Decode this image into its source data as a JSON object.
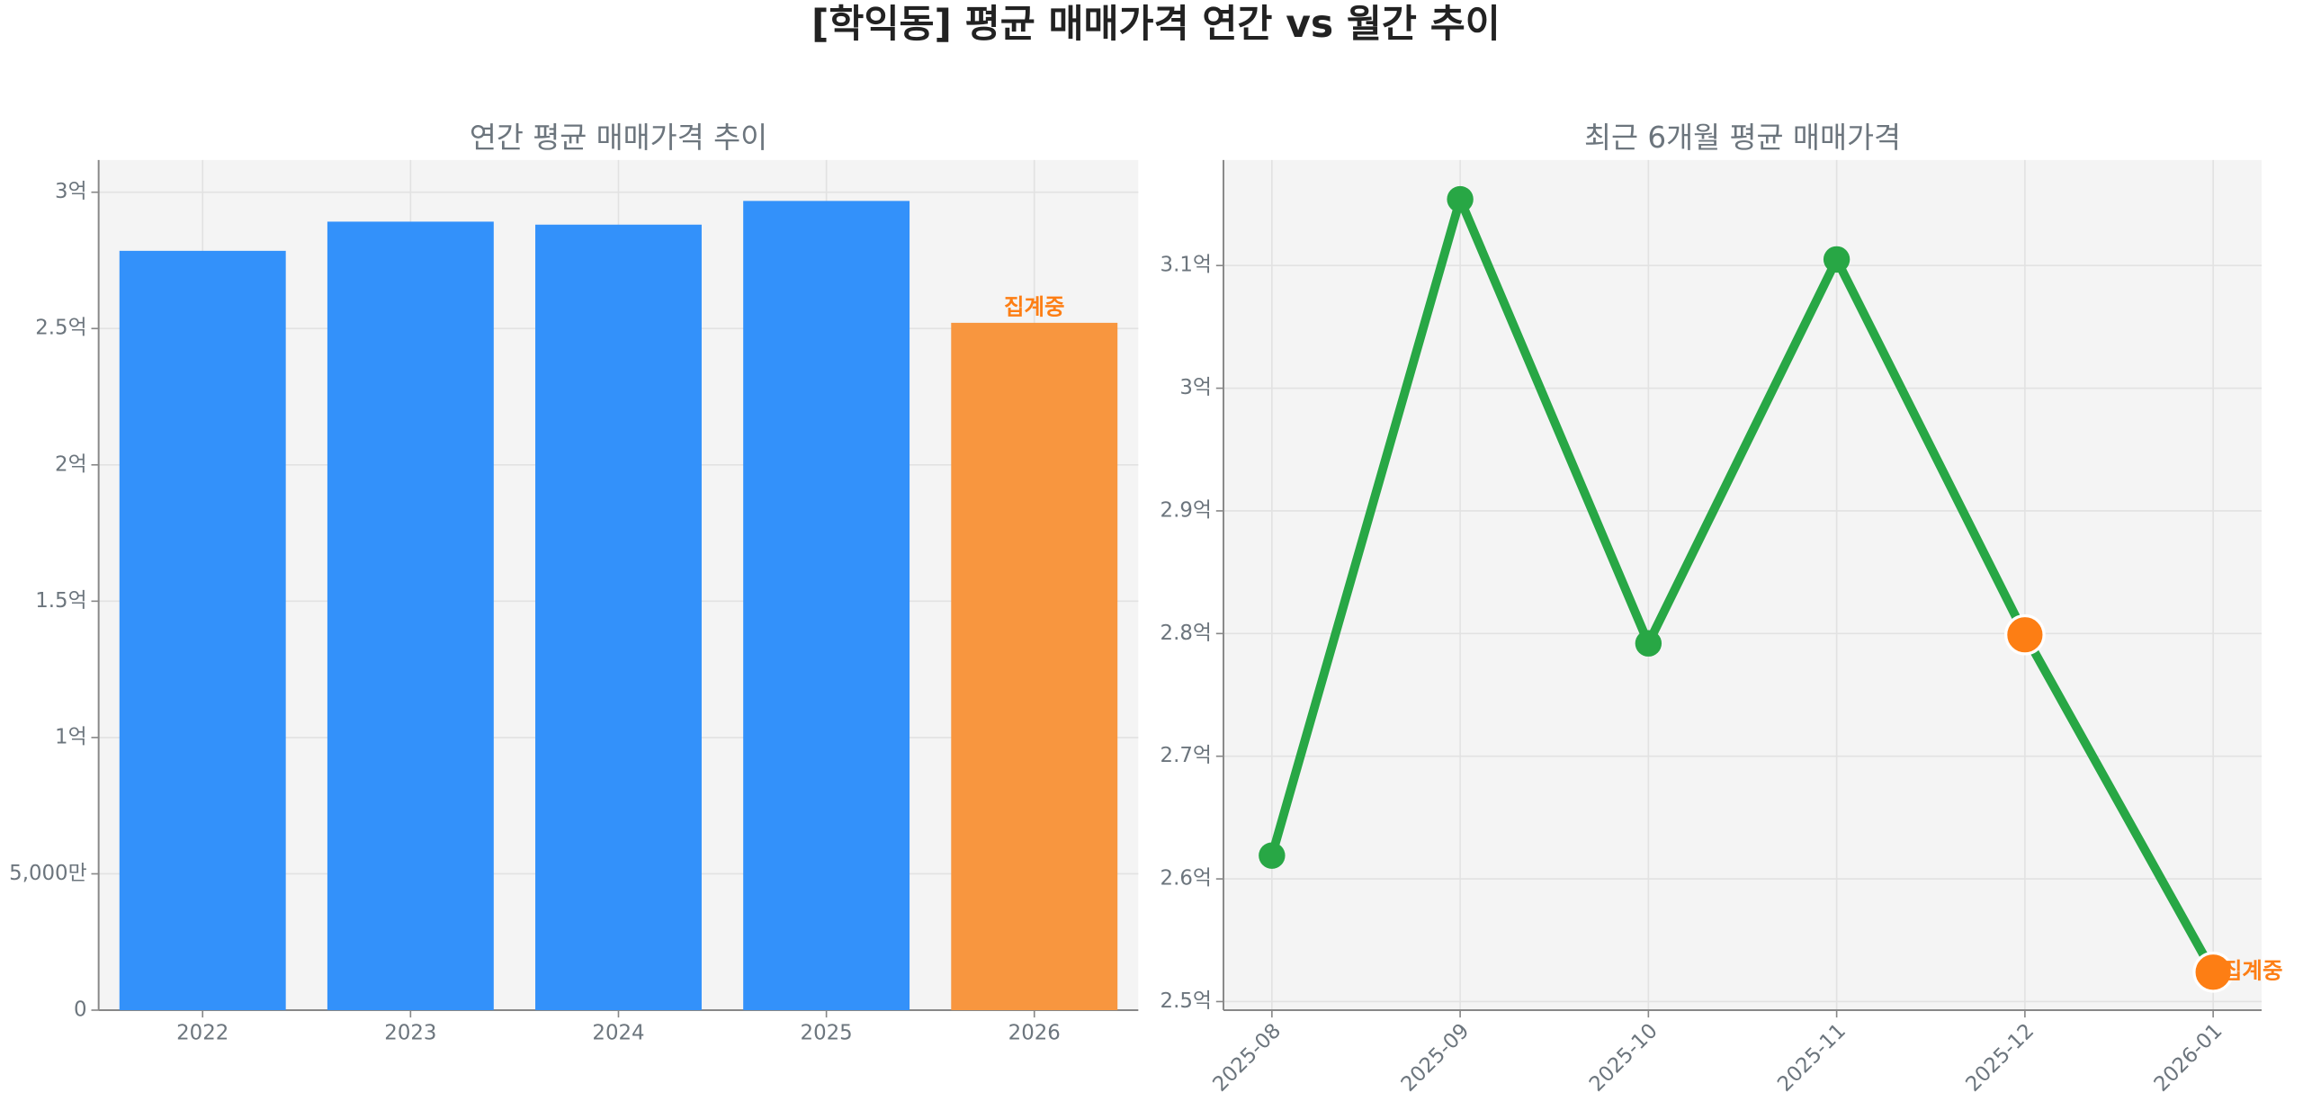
{
  "title": "[학익동] 평균 매매가격 연간 vs 월간 추이",
  "chart_data": [
    {
      "type": "bar",
      "title": "연간 평균 매매가격 추이",
      "categories": [
        "2022",
        "2023",
        "2024",
        "2025",
        "2026"
      ],
      "values": [
        278500000,
        289200000,
        288100000,
        296800000,
        252100000
      ],
      "colors": [
        "#3391fa",
        "#3391fa",
        "#3391fa",
        "#3391fa",
        "#f8963f"
      ],
      "annotations": [
        {
          "index": 4,
          "text": "집계중",
          "color": "#fd7e14"
        }
      ],
      "ylim": [
        0,
        311800000
      ],
      "yticks": [
        {
          "value": 0,
          "label": "0"
        },
        {
          "value": 50000000,
          "label": "5,000만"
        },
        {
          "value": 100000000,
          "label": "1억"
        },
        {
          "value": 150000000,
          "label": "1.5억"
        },
        {
          "value": 200000000,
          "label": "2억"
        },
        {
          "value": 250000000,
          "label": "2.5억"
        },
        {
          "value": 300000000,
          "label": "3억"
        }
      ],
      "grid": true
    },
    {
      "type": "line",
      "title": "최근 6개월 평균 매매가격",
      "categories": [
        "2025-08",
        "2025-09",
        "2025-10",
        "2025-11",
        "2025-12",
        "2026-01"
      ],
      "values": [
        261900000,
        315400000,
        279200000,
        310500000,
        279900000,
        252400000
      ],
      "color": "#28a745",
      "point_colors": [
        "#28a745",
        "#28a745",
        "#28a745",
        "#28a745",
        "#fd7e14",
        "#fd7e14"
      ],
      "annotations": [
        {
          "index": 5,
          "text": "집계중",
          "color": "#fd7e14"
        }
      ],
      "ylim": [
        249300000,
        318600000
      ],
      "yticks": [
        {
          "value": 250000000,
          "label": "2.5억"
        },
        {
          "value": 260000000,
          "label": "2.6억"
        },
        {
          "value": 270000000,
          "label": "2.7억"
        },
        {
          "value": 280000000,
          "label": "2.8억"
        },
        {
          "value": 290000000,
          "label": "2.9억"
        },
        {
          "value": 300000000,
          "label": "3억"
        },
        {
          "value": 310000000,
          "label": "3.1억"
        }
      ],
      "grid": true
    }
  ]
}
